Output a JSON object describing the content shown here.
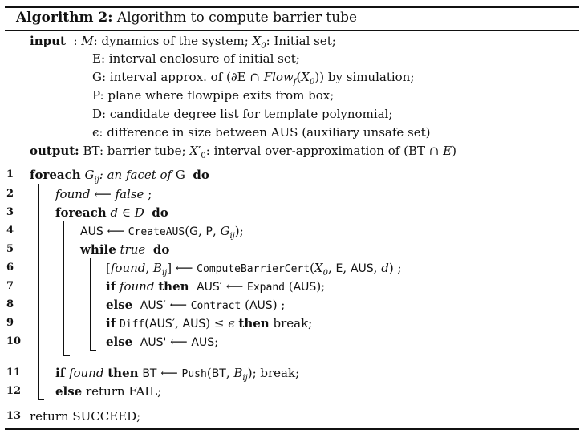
{
  "title": {
    "label": "Algorithm 2:",
    "text": "Algorithm to compute barrier tube"
  },
  "io": {
    "input_label": "input",
    "output_label": "output:",
    "inputs": [
      "M: dynamics of the system; X0: Initial set;",
      "E: interval enclosure of initial set;",
      "G: interval approx. of (∂E ∩ Flowf(X0)) by simulation;",
      "P: plane where flowpipe exits from box;",
      "D: candidate degree list for template polynomial;",
      "ϵ: difference in size between AUS (auxiliary unsafe set)"
    ],
    "output": "BT: barrier tube; X0′: interval over-approximation of (BT ∩ E)"
  },
  "lines": [
    {
      "num": "1",
      "text": "foreach Gij: an facet of G do"
    },
    {
      "num": "2",
      "text": "found ⟵ false ;"
    },
    {
      "num": "3",
      "text": "foreach d ∈ D do"
    },
    {
      "num": "4",
      "text": "AUS ⟵ CreateAUS(G, P, Gij);"
    },
    {
      "num": "5",
      "text": "while true do"
    },
    {
      "num": "6",
      "text": "[found, Bij] ⟵ ComputeBarrierCert(X0, E, AUS, d) ;"
    },
    {
      "num": "7",
      "text": "if found then AUS′ ⟵ Expand (AUS);"
    },
    {
      "num": "8",
      "text": "else AUS′ ⟵ Contract (AUS) ;"
    },
    {
      "num": "9",
      "text": "if Diff(AUS′, AUS) ≤ ϵ then break;"
    },
    {
      "num": "10",
      "text": "else AUS' ⟵ AUS;"
    },
    {
      "num": "11",
      "text": "if found then BT ⟵ Push(BT, Bij); break;"
    },
    {
      "num": "12",
      "text": "else return FAIL;"
    },
    {
      "num": "13",
      "text": "return SUCCEED;"
    }
  ]
}
